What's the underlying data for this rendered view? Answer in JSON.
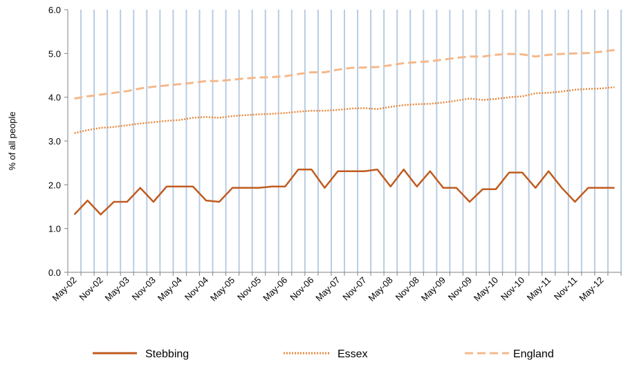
{
  "chart_data": {
    "type": "line",
    "title": "",
    "xlabel": "",
    "ylabel": "% of all people",
    "ylim": [
      0,
      6
    ],
    "yticks": [
      "0.0",
      "1.0",
      "2.0",
      "3.0",
      "4.0",
      "5.0",
      "6.0"
    ],
    "x_tick_labels": [
      "May-02",
      "Nov-02",
      "May-03",
      "Nov-03",
      "May-04",
      "Nov-04",
      "May-05",
      "Nov-05",
      "May-06",
      "Nov-06",
      "May-07",
      "Nov-07",
      "May-08",
      "Nov-08",
      "May-09",
      "Nov-09",
      "May-10",
      "Nov-10",
      "May-11",
      "Nov-11",
      "May-12"
    ],
    "x_count": 42,
    "vertical_gridlines": true,
    "legend_position": "bottom",
    "series": [
      {
        "name": "Stebbing",
        "color": "#C05A1E",
        "style": "solid",
        "values": [
          1.32,
          1.64,
          1.32,
          1.61,
          1.61,
          1.93,
          1.61,
          1.96,
          1.96,
          1.96,
          1.64,
          1.61,
          1.93,
          1.93,
          1.93,
          1.96,
          1.96,
          2.35,
          2.35,
          1.93,
          2.31,
          2.31,
          2.31,
          2.35,
          1.96,
          2.35,
          1.96,
          2.31,
          1.93,
          1.93,
          1.61,
          1.9,
          1.9,
          2.28,
          2.28,
          1.93,
          2.31,
          1.93,
          1.61,
          1.93,
          1.93,
          1.93
        ]
      },
      {
        "name": "Essex",
        "color": "#E8873A",
        "style": "dotted",
        "values": [
          3.18,
          3.25,
          3.3,
          3.32,
          3.36,
          3.4,
          3.43,
          3.46,
          3.48,
          3.53,
          3.55,
          3.53,
          3.57,
          3.59,
          3.61,
          3.62,
          3.64,
          3.67,
          3.69,
          3.69,
          3.71,
          3.74,
          3.75,
          3.73,
          3.78,
          3.82,
          3.84,
          3.85,
          3.88,
          3.92,
          3.97,
          3.94,
          3.96,
          4.0,
          4.02,
          4.09,
          4.1,
          4.13,
          4.17,
          4.19,
          4.2,
          4.23
        ]
      },
      {
        "name": "England",
        "color": "#F5B88A",
        "style": "dashed",
        "values": [
          3.97,
          4.02,
          4.06,
          4.1,
          4.14,
          4.2,
          4.24,
          4.27,
          4.3,
          4.33,
          4.37,
          4.37,
          4.4,
          4.43,
          4.45,
          4.46,
          4.48,
          4.53,
          4.57,
          4.57,
          4.63,
          4.67,
          4.68,
          4.69,
          4.73,
          4.78,
          4.8,
          4.82,
          4.86,
          4.9,
          4.93,
          4.93,
          4.97,
          4.99,
          4.98,
          4.93,
          4.97,
          4.99,
          5.0,
          5.01,
          5.04,
          5.08
        ]
      }
    ]
  }
}
